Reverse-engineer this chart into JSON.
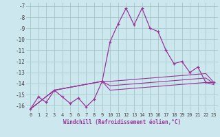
{
  "xlabel": "Windchill (Refroidissement éolien,°C)",
  "bg_color": "#cce8ee",
  "grid_color": "#aacccc",
  "line_color": "#993399",
  "xmin": -0.5,
  "xmax": 23.5,
  "ymin": -16.6,
  "ymax": -6.7,
  "yticks": [
    -16,
    -15,
    -14,
    -13,
    -12,
    -11,
    -10,
    -9,
    -8,
    -7
  ],
  "xticks": [
    0,
    1,
    2,
    3,
    4,
    5,
    6,
    7,
    8,
    9,
    10,
    11,
    12,
    13,
    14,
    15,
    16,
    17,
    18,
    19,
    20,
    21,
    22,
    23
  ],
  "lines": [
    {
      "x": [
        0,
        1,
        2,
        3,
        4,
        5,
        6,
        7,
        8,
        9,
        10,
        11,
        12,
        13,
        14,
        15,
        16,
        17,
        18,
        19,
        20,
        21,
        22,
        23
      ],
      "y": [
        -16.3,
        -15.2,
        -15.7,
        -14.6,
        -15.2,
        -15.8,
        -15.3,
        -16.1,
        -15.4,
        -13.8,
        -10.2,
        -8.6,
        -7.2,
        -8.7,
        -7.2,
        -9.0,
        -9.3,
        -11.0,
        -12.2,
        -12.0,
        -13.0,
        -12.5,
        -13.9,
        -13.9
      ],
      "marker": true
    },
    {
      "x": [
        0,
        3,
        9,
        10,
        22,
        23
      ],
      "y": [
        -16.3,
        -14.6,
        -13.8,
        -13.8,
        -13.1,
        -13.9
      ],
      "marker": false
    },
    {
      "x": [
        0,
        3,
        9,
        10,
        22,
        23
      ],
      "y": [
        -16.3,
        -14.6,
        -13.8,
        -14.2,
        -13.5,
        -14.0
      ],
      "marker": false
    },
    {
      "x": [
        0,
        3,
        9,
        10,
        22,
        23
      ],
      "y": [
        -16.3,
        -14.6,
        -13.8,
        -14.6,
        -13.9,
        -14.1
      ],
      "marker": false
    }
  ]
}
